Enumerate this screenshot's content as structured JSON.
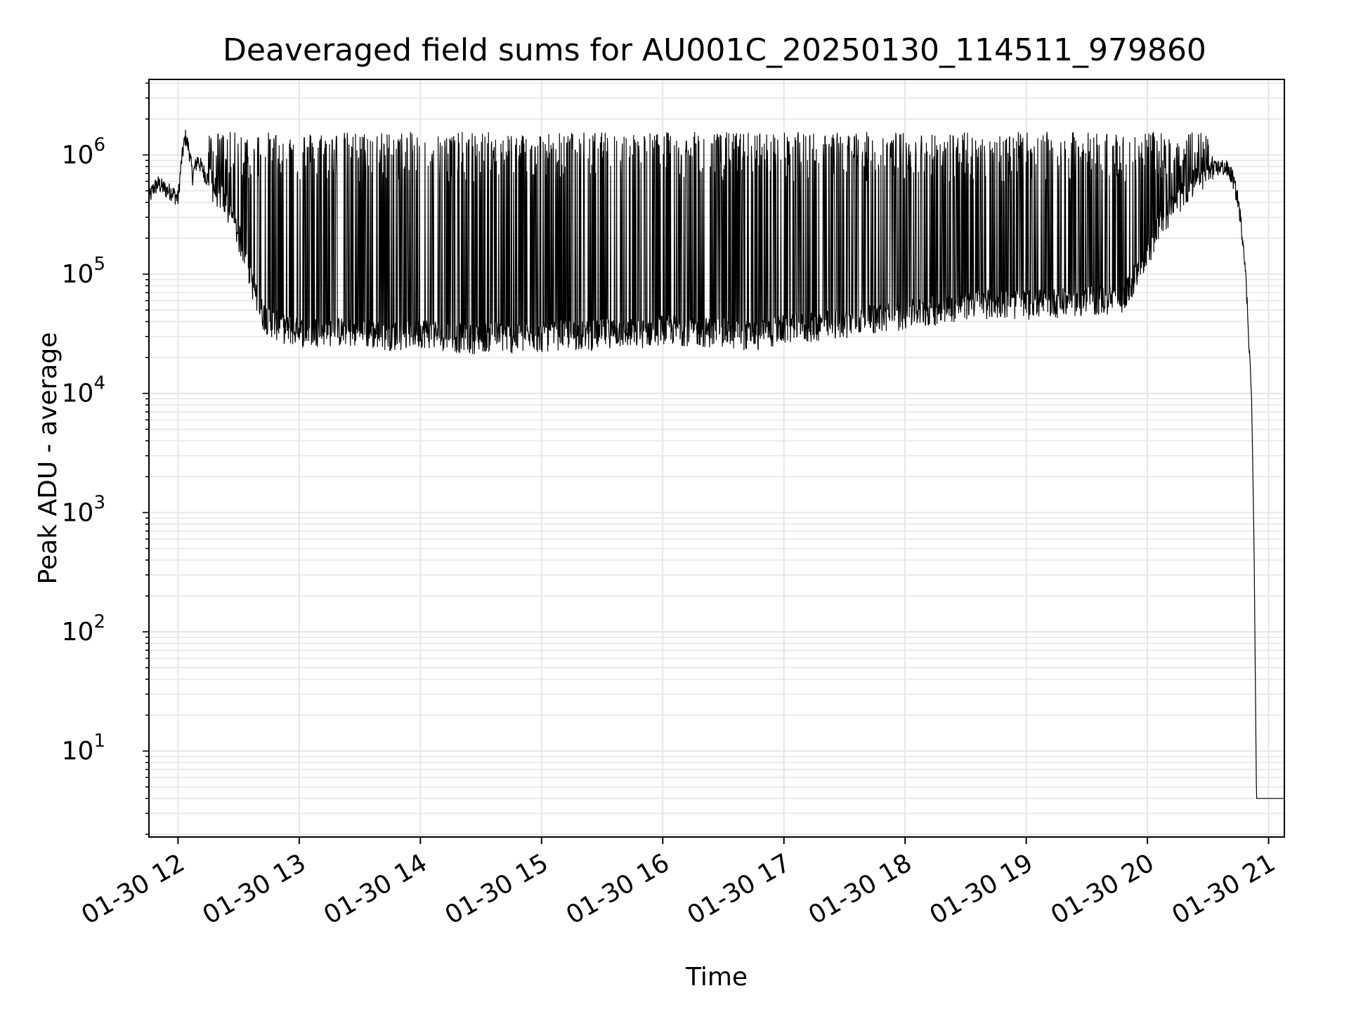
{
  "chart_data": {
    "type": "line",
    "title": "Deaveraged field sums for AU001C_20250130_114511_979860",
    "xlabel": "Time",
    "ylabel": "Peak ADU - average",
    "x_ticks": [
      "01-30 12",
      "01-30 13",
      "01-30 14",
      "01-30 15",
      "01-30 16",
      "01-30 17",
      "01-30 18",
      "01-30 19",
      "01-30 20",
      "01-30 21"
    ],
    "x_tick_hours": [
      12,
      13,
      14,
      15,
      16,
      17,
      18,
      19,
      20,
      21
    ],
    "xlim_hours": [
      11.76,
      21.13
    ],
    "y_scale": "log",
    "ylim": [
      1.9,
      4300000
    ],
    "y_ticks": [
      {
        "base": "10",
        "exp": "1",
        "value": 10
      },
      {
        "base": "10",
        "exp": "2",
        "value": 100
      },
      {
        "base": "10",
        "exp": "3",
        "value": 1000
      },
      {
        "base": "10",
        "exp": "4",
        "value": 10000
      },
      {
        "base": "10",
        "exp": "5",
        "value": 100000
      },
      {
        "base": "10",
        "exp": "6",
        "value": 1000000
      }
    ],
    "grid": true,
    "line_color": "#000000",
    "series": [
      {
        "x_hours": [
          11.76,
          11.8,
          11.84,
          11.9,
          11.95,
          12.0,
          12.03,
          12.06,
          12.09,
          12.12,
          12.16,
          12.2,
          12.25,
          12.3,
          12.35,
          12.4,
          12.45,
          12.5,
          12.55,
          12.6,
          12.65,
          12.7,
          12.75,
          12.85,
          13.0,
          13.2,
          13.4,
          13.6,
          13.8,
          14.0,
          14.2,
          14.4,
          14.6,
          14.8,
          15.0,
          15.2,
          15.4,
          15.6,
          15.8,
          16.0,
          16.2,
          16.4,
          16.6,
          16.8,
          17.0,
          17.2,
          17.4,
          17.6,
          17.8,
          18.0,
          18.2,
          18.4,
          18.6,
          18.8,
          19.0,
          19.2,
          19.4,
          19.6,
          19.8,
          20.0,
          20.1,
          20.2,
          20.3,
          20.4,
          20.5,
          20.6,
          20.65,
          20.7,
          20.75,
          20.8,
          20.83,
          20.86,
          20.88,
          20.9,
          20.93,
          21.13
        ],
        "y_typical": [
          420000,
          520000,
          560000,
          500000,
          480000,
          420000,
          900000,
          1400000,
          1100000,
          650000,
          900000,
          750000,
          600000,
          500000,
          450000,
          350000,
          280000,
          200000,
          150000,
          90000,
          60000,
          45000,
          40000,
          35000,
          32000,
          33000,
          32000,
          31000,
          30000,
          32000,
          30000,
          28000,
          30000,
          28000,
          29000,
          31000,
          30000,
          32000,
          31000,
          34000,
          33000,
          32000,
          31000,
          30000,
          34000,
          35000,
          37000,
          40000,
          42000,
          45000,
          48000,
          52000,
          56000,
          55000,
          55000,
          57000,
          56000,
          60000,
          58000,
          150000,
          250000,
          350000,
          480000,
          600000,
          700000,
          780000,
          760000,
          650000,
          400000,
          150000,
          40000,
          9000,
          500,
          4,
          4,
          4
        ],
        "upper_envelope": 1200000,
        "lower_envelope": 25000
      }
    ]
  }
}
